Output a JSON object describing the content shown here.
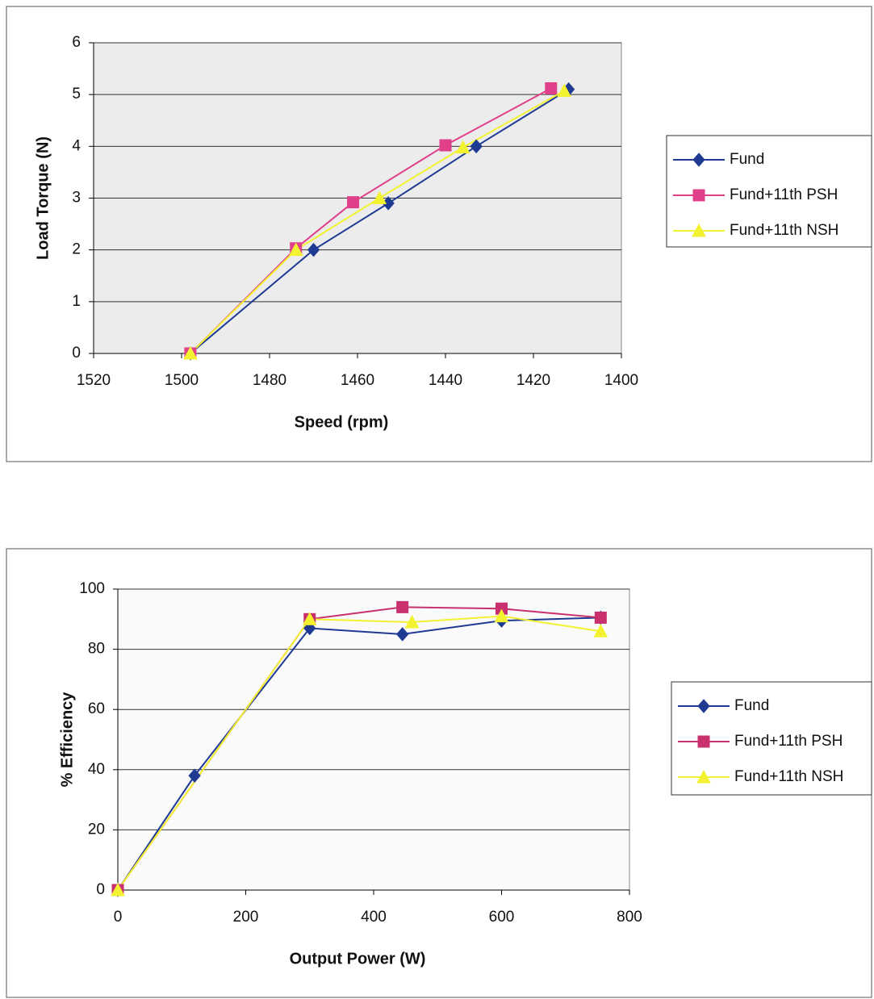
{
  "chart_data": [
    {
      "type": "line",
      "x_label": "Speed (rpm)",
      "y_label": "Load Torque (N)",
      "xlim": [
        1520,
        1400
      ],
      "xticks": [
        1520,
        1500,
        1480,
        1460,
        1440,
        1420,
        1400
      ],
      "ylim": [
        0,
        6
      ],
      "yticks": [
        0,
        1,
        2,
        3,
        4,
        5,
        6
      ],
      "grid": true,
      "legend": "right",
      "series": [
        {
          "name": "Fund",
          "color": "#1f3a93",
          "marker": "diamond",
          "x": [
            1498,
            1470,
            1453,
            1433,
            1412
          ],
          "values": [
            0,
            2,
            2.9,
            4,
            5.1
          ]
        },
        {
          "name": "Fund+11th PSH",
          "color": "#e0408a",
          "marker": "square",
          "x": [
            1498,
            1474,
            1461,
            1440,
            1416
          ],
          "values": [
            0,
            2.03,
            2.92,
            4.02,
            5.12
          ]
        },
        {
          "name": "Fund+11th NSH",
          "color": "#f2f230",
          "marker": "triangle",
          "x": [
            1498,
            1474,
            1455,
            1436,
            1413
          ],
          "values": [
            0,
            2,
            3,
            3.98,
            5.07
          ]
        }
      ]
    },
    {
      "type": "line",
      "x_label": "Output Power (W)",
      "y_label": "% Efficiency",
      "xlim": [
        0,
        800
      ],
      "xticks": [
        0,
        200,
        400,
        600,
        800
      ],
      "ylim": [
        0,
        100
      ],
      "yticks": [
        0,
        20,
        40,
        60,
        80,
        100
      ],
      "grid": true,
      "legend": "right",
      "series": [
        {
          "name": "Fund",
          "color": "#1f3a93",
          "marker": "diamond",
          "x": [
            0,
            120,
            300,
            445,
            600,
            755
          ],
          "values": [
            0,
            38,
            87,
            85,
            89.5,
            90.5
          ]
        },
        {
          "name": "Fund+11th PSH",
          "color": "#c8306e",
          "marker": "square",
          "x": [
            0,
            300,
            445,
            600,
            755
          ],
          "values": [
            0,
            90,
            94,
            93.5,
            90.5
          ]
        },
        {
          "name": "Fund+11th NSH",
          "color": "#f2f230",
          "marker": "triangle",
          "x": [
            0,
            300,
            460,
            600,
            755
          ],
          "values": [
            0,
            90,
            89,
            91,
            86
          ]
        }
      ]
    }
  ]
}
